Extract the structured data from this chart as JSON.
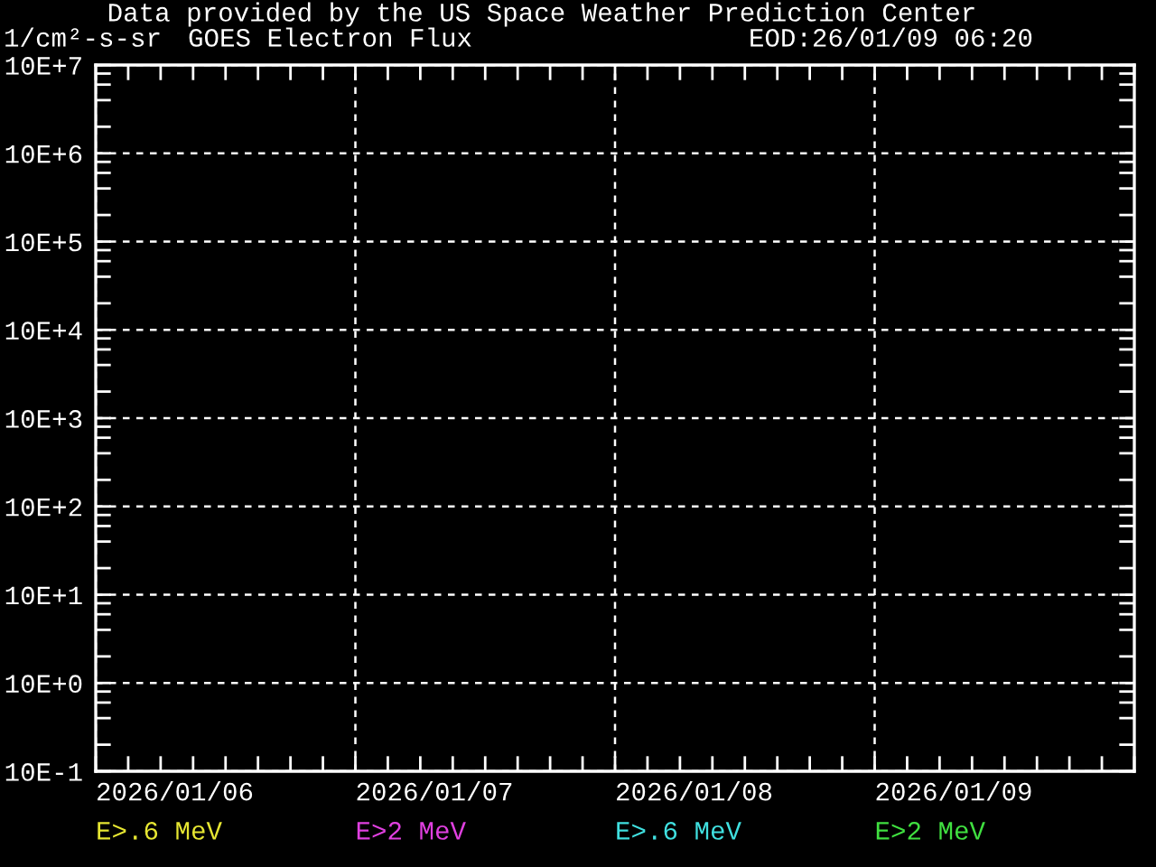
{
  "chart_data": {
    "type": "line",
    "title": "GOES Electron Flux",
    "ylabel": "1/cm²-s-sr",
    "annotations": [
      "Data provided by the US Space Weather Prediction Center",
      "EOD:26/01/09 06:20"
    ],
    "categories": [
      "2026/01/06",
      "2026/01/07",
      "2026/01/08",
      "2026/01/09"
    ],
    "series": [
      {
        "name": "E>.6 MeV",
        "color": "#e6e632",
        "values": [
          null,
          null,
          null,
          null
        ]
      },
      {
        "name": "E>2 MeV",
        "color": "#e040e0",
        "values": [
          null,
          null,
          null,
          null
        ]
      },
      {
        "name": "E>.6 MeV",
        "color": "#40e0e0",
        "values": [
          null,
          null,
          null,
          null
        ]
      },
      {
        "name": "E>2 MeV",
        "color": "#40e040",
        "values": [
          null,
          null,
          null,
          null
        ]
      }
    ],
    "log": true,
    "ylim": [
      1,
      100000000
    ],
    "yticks": [
      {
        "value": 1,
        "label": "10E-1"
      },
      {
        "value": 10,
        "label": "10E+0"
      },
      {
        "value": 100,
        "label": "10E+1"
      },
      {
        "value": 1000,
        "label": "10E+2"
      },
      {
        "value": 10000,
        "label": "10E+3"
      },
      {
        "value": 100000,
        "label": "10E+4"
      },
      {
        "value": 1000000,
        "label": "10E+5"
      },
      {
        "value": 10000000,
        "label": "10E+6"
      },
      {
        "value": 100000000,
        "label": "10E+7"
      }
    ],
    "grid": true
  }
}
